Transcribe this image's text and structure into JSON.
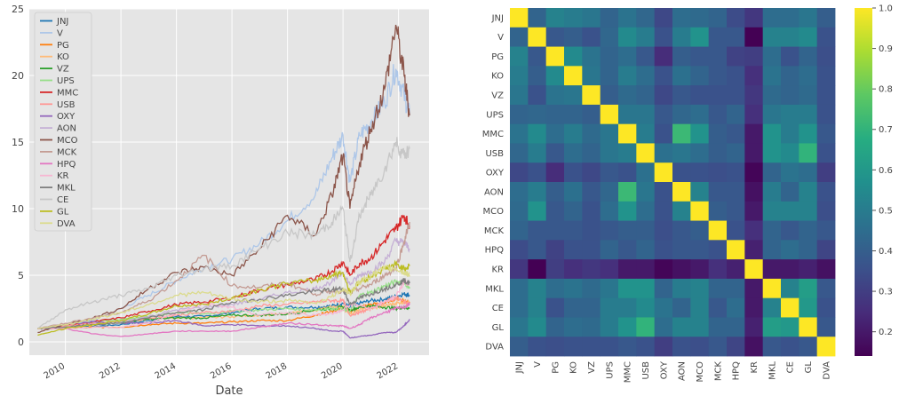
{
  "chart_data": [
    {
      "type": "line",
      "title": "",
      "xlabel": "Date",
      "ylabel": "",
      "xlim": [
        2008.7,
        2023.1
      ],
      "ylim": [
        -1,
        25
      ],
      "x_ticks": [
        "2010",
        "2012",
        "2014",
        "2016",
        "2018",
        "2020",
        "2022"
      ],
      "y_ticks": [
        "0",
        "5",
        "10",
        "15",
        "20",
        "25"
      ],
      "grid": true,
      "legend_position": "upper-left",
      "x": [
        2009.0,
        2010.0,
        2011.0,
        2012.0,
        2013.0,
        2014.0,
        2015.0,
        2016.0,
        2017.0,
        2018.0,
        2019.0,
        2019.6,
        2020.0,
        2020.25,
        2020.6,
        2021.0,
        2021.5,
        2021.9,
        2022.2,
        2022.4
      ],
      "series": [
        {
          "name": "JNJ",
          "color": "#1f77b4",
          "values": [
            1.0,
            1.1,
            1.15,
            1.3,
            1.6,
            1.9,
            1.9,
            2.2,
            2.5,
            2.6,
            2.6,
            2.7,
            2.9,
            2.6,
            2.9,
            3.1,
            3.2,
            3.4,
            3.6,
            3.5
          ]
        },
        {
          "name": "V",
          "color": "#aec7e8",
          "values": [
            1.0,
            1.3,
            1.6,
            2.5,
            3.5,
            4.6,
            5.6,
            6.2,
            7.4,
            9.1,
            11.0,
            13.8,
            15.5,
            12.0,
            15.5,
            16.5,
            18.0,
            20.5,
            18.5,
            17.0
          ]
        },
        {
          "name": "PG",
          "color": "#ff7f0e",
          "values": [
            1.0,
            1.0,
            1.1,
            1.1,
            1.3,
            1.4,
            1.4,
            1.5,
            1.6,
            1.6,
            2.0,
            2.3,
            2.5,
            2.3,
            2.6,
            2.8,
            2.9,
            3.3,
            3.1,
            3.0
          ]
        },
        {
          "name": "KO",
          "color": "#ffbb78",
          "values": [
            1.0,
            1.2,
            1.3,
            1.5,
            1.7,
            1.8,
            1.8,
            1.9,
            2.0,
            2.1,
            2.4,
            2.6,
            2.7,
            2.1,
            2.4,
            2.5,
            2.7,
            2.9,
            3.0,
            3.0
          ]
        },
        {
          "name": "VZ",
          "color": "#2ca02c",
          "values": [
            1.0,
            1.1,
            1.3,
            1.5,
            1.7,
            1.8,
            1.8,
            2.0,
            2.0,
            2.1,
            2.4,
            2.5,
            2.6,
            2.4,
            2.6,
            2.7,
            2.6,
            2.5,
            2.6,
            2.5
          ]
        },
        {
          "name": "UPS",
          "color": "#98df8a",
          "values": [
            1.0,
            1.2,
            1.5,
            1.7,
            1.9,
            2.2,
            2.1,
            2.3,
            2.4,
            2.5,
            2.4,
            2.5,
            2.4,
            2.3,
            3.5,
            3.7,
            4.2,
            4.5,
            4.5,
            4.0
          ]
        },
        {
          "name": "MMC",
          "color": "#d62728",
          "values": [
            1.0,
            1.2,
            1.5,
            1.8,
            2.3,
            2.8,
            3.0,
            3.3,
            3.9,
            4.3,
            4.7,
            5.3,
            6.0,
            5.0,
            5.9,
            6.3,
            7.6,
            8.5,
            9.5,
            8.7
          ]
        },
        {
          "name": "USB",
          "color": "#ff9896",
          "values": [
            1.0,
            1.2,
            1.4,
            1.5,
            1.8,
            2.0,
            2.2,
            2.3,
            2.7,
            2.8,
            3.0,
            3.1,
            3.1,
            2.0,
            2.2,
            2.5,
            3.0,
            3.3,
            3.0,
            2.8
          ]
        },
        {
          "name": "OXY",
          "color": "#9467bd",
          "values": [
            1.0,
            1.3,
            1.5,
            1.4,
            1.4,
            1.6,
            1.2,
            1.3,
            1.2,
            1.2,
            1.0,
            0.8,
            0.8,
            0.3,
            0.4,
            0.5,
            0.7,
            0.7,
            1.2,
            1.7
          ]
        },
        {
          "name": "AON",
          "color": "#c5b0d5",
          "values": [
            1.0,
            1.1,
            1.3,
            1.5,
            1.9,
            2.4,
            2.6,
            2.8,
            3.2,
            3.7,
            4.0,
            4.5,
            5.2,
            4.3,
            5.0,
            5.3,
            6.0,
            7.6,
            7.4,
            7.0
          ]
        },
        {
          "name": "MCO",
          "color": "#8c564b",
          "values": [
            0.7,
            1.3,
            1.8,
            2.5,
            4.0,
            5.2,
            5.6,
            5.0,
            7.0,
            9.5,
            8.0,
            11.0,
            14.0,
            10.0,
            13.5,
            16.0,
            19.0,
            23.8,
            20.0,
            17.0
          ]
        },
        {
          "name": "MCK",
          "color": "#c49c94",
          "values": [
            1.0,
            1.4,
            1.8,
            2.2,
            3.1,
            4.6,
            6.5,
            4.2,
            4.1,
            4.4,
            3.6,
            3.8,
            3.8,
            3.7,
            4.0,
            4.3,
            5.0,
            5.5,
            7.5,
            9.0
          ]
        },
        {
          "name": "HPQ",
          "color": "#e377c2",
          "values": [
            1.0,
            1.0,
            0.6,
            0.4,
            0.6,
            0.8,
            0.8,
            0.8,
            1.1,
            1.4,
            1.3,
            1.2,
            1.2,
            1.0,
            1.3,
            1.8,
            2.2,
            2.5,
            2.6,
            2.8
          ]
        },
        {
          "name": "KR",
          "color": "#f7b6d2",
          "values": [
            1.0,
            1.0,
            1.1,
            1.1,
            1.4,
            2.2,
            2.9,
            2.6,
            2.0,
            2.2,
            2.0,
            2.1,
            2.4,
            2.8,
            2.7,
            2.5,
            3.0,
            3.4,
            4.5,
            4.3
          ]
        },
        {
          "name": "MKL",
          "color": "#7f7f7f",
          "values": [
            1.0,
            1.1,
            1.3,
            1.4,
            1.8,
            2.2,
            2.4,
            3.0,
            3.2,
            3.5,
            3.8,
            3.9,
            4.0,
            2.8,
            3.3,
            3.6,
            4.0,
            4.3,
            4.6,
            4.4
          ]
        },
        {
          "name": "CE",
          "color": "#c7c7c7",
          "values": [
            1.0,
            2.4,
            3.0,
            3.5,
            4.0,
            5.0,
            5.5,
            5.7,
            7.0,
            8.2,
            8.0,
            9.0,
            10.0,
            6.0,
            9.5,
            11.0,
            13.0,
            15.0,
            14.0,
            14.5
          ]
        },
        {
          "name": "GL",
          "color": "#bcbd22",
          "values": [
            0.5,
            1.0,
            1.3,
            1.6,
            2.1,
            2.7,
            2.8,
            3.3,
            3.9,
            4.4,
            4.6,
            5.0,
            5.2,
            3.7,
            4.5,
            4.9,
            5.5,
            5.8,
            5.5,
            5.7
          ]
        },
        {
          "name": "DVA",
          "color": "#dbdb8d",
          "values": [
            1.0,
            1.3,
            1.7,
            2.2,
            2.8,
            3.5,
            3.7,
            3.2,
            3.0,
            3.1,
            2.9,
            3.4,
            4.0,
            3.6,
            4.5,
            5.0,
            5.5,
            5.5,
            5.2,
            5.0
          ]
        }
      ]
    },
    {
      "type": "heatmap",
      "title": "",
      "labels": [
        "JNJ",
        "V",
        "PG",
        "KO",
        "VZ",
        "UPS",
        "MMC",
        "USB",
        "OXY",
        "AON",
        "MCO",
        "MCK",
        "HPQ",
        "KR",
        "MKL",
        "CE",
        "GL",
        "DVA"
      ],
      "colormap": "viridis",
      "vmin": 0.14,
      "vmax": 1.0,
      "colorbar_ticks": [
        "0.2",
        "0.3",
        "0.4",
        "0.5",
        "0.6",
        "0.7",
        "0.8",
        "0.9",
        "1.0"
      ],
      "matrix": [
        [
          1.0,
          0.42,
          0.52,
          0.5,
          0.48,
          0.42,
          0.47,
          0.43,
          0.33,
          0.45,
          0.44,
          0.42,
          0.34,
          0.28,
          0.45,
          0.45,
          0.48,
          0.4
        ],
        [
          0.42,
          1.0,
          0.38,
          0.4,
          0.36,
          0.43,
          0.55,
          0.5,
          0.36,
          0.5,
          0.58,
          0.38,
          0.38,
          0.14,
          0.52,
          0.52,
          0.55,
          0.36
        ],
        [
          0.52,
          0.38,
          1.0,
          0.55,
          0.47,
          0.42,
          0.45,
          0.38,
          0.25,
          0.4,
          0.38,
          0.38,
          0.31,
          0.3,
          0.45,
          0.36,
          0.42,
          0.35
        ],
        [
          0.5,
          0.4,
          0.55,
          1.0,
          0.48,
          0.42,
          0.5,
          0.45,
          0.36,
          0.46,
          0.42,
          0.38,
          0.36,
          0.26,
          0.47,
          0.42,
          0.45,
          0.36
        ],
        [
          0.48,
          0.36,
          0.47,
          0.48,
          1.0,
          0.4,
          0.44,
          0.42,
          0.33,
          0.38,
          0.36,
          0.36,
          0.36,
          0.28,
          0.44,
          0.42,
          0.44,
          0.36
        ],
        [
          0.42,
          0.43,
          0.42,
          0.42,
          0.4,
          1.0,
          0.48,
          0.48,
          0.38,
          0.43,
          0.45,
          0.38,
          0.42,
          0.26,
          0.48,
          0.5,
          0.5,
          0.36
        ],
        [
          0.47,
          0.55,
          0.45,
          0.5,
          0.44,
          0.48,
          1.0,
          0.5,
          0.36,
          0.72,
          0.58,
          0.4,
          0.38,
          0.2,
          0.58,
          0.5,
          0.58,
          0.38
        ],
        [
          0.43,
          0.5,
          0.38,
          0.45,
          0.42,
          0.48,
          0.5,
          1.0,
          0.46,
          0.48,
          0.45,
          0.4,
          0.42,
          0.2,
          0.58,
          0.55,
          0.7,
          0.36
        ],
        [
          0.33,
          0.36,
          0.25,
          0.36,
          0.33,
          0.38,
          0.36,
          0.46,
          1.0,
          0.36,
          0.36,
          0.35,
          0.36,
          0.15,
          0.42,
          0.47,
          0.45,
          0.3
        ],
        [
          0.45,
          0.5,
          0.4,
          0.46,
          0.38,
          0.43,
          0.72,
          0.48,
          0.36,
          1.0,
          0.52,
          0.38,
          0.38,
          0.18,
          0.5,
          0.42,
          0.52,
          0.36
        ],
        [
          0.44,
          0.58,
          0.38,
          0.42,
          0.36,
          0.45,
          0.58,
          0.45,
          0.36,
          0.52,
          1.0,
          0.4,
          0.38,
          0.2,
          0.52,
          0.52,
          0.52,
          0.35
        ],
        [
          0.42,
          0.38,
          0.38,
          0.38,
          0.36,
          0.38,
          0.4,
          0.4,
          0.35,
          0.38,
          0.4,
          1.0,
          0.36,
          0.26,
          0.42,
          0.38,
          0.42,
          0.38
        ],
        [
          0.34,
          0.38,
          0.31,
          0.36,
          0.36,
          0.42,
          0.38,
          0.42,
          0.36,
          0.38,
          0.38,
          0.36,
          1.0,
          0.22,
          0.42,
          0.45,
          0.42,
          0.32
        ],
        [
          0.28,
          0.14,
          0.3,
          0.26,
          0.28,
          0.26,
          0.2,
          0.2,
          0.15,
          0.18,
          0.2,
          0.26,
          0.22,
          1.0,
          0.2,
          0.2,
          0.22,
          0.18
        ],
        [
          0.45,
          0.52,
          0.45,
          0.47,
          0.44,
          0.48,
          0.58,
          0.58,
          0.42,
          0.5,
          0.52,
          0.42,
          0.42,
          0.2,
          1.0,
          0.52,
          0.62,
          0.38
        ],
        [
          0.45,
          0.52,
          0.36,
          0.42,
          0.42,
          0.5,
          0.5,
          0.55,
          0.47,
          0.42,
          0.52,
          0.38,
          0.45,
          0.2,
          0.52,
          1.0,
          0.6,
          0.36
        ],
        [
          0.48,
          0.55,
          0.42,
          0.45,
          0.44,
          0.5,
          0.58,
          0.7,
          0.45,
          0.52,
          0.52,
          0.42,
          0.42,
          0.22,
          0.62,
          0.6,
          1.0,
          0.38
        ],
        [
          0.4,
          0.36,
          0.35,
          0.36,
          0.36,
          0.36,
          0.38,
          0.36,
          0.3,
          0.36,
          0.35,
          0.38,
          0.32,
          0.18,
          0.38,
          0.36,
          0.38,
          1.0
        ]
      ]
    }
  ]
}
